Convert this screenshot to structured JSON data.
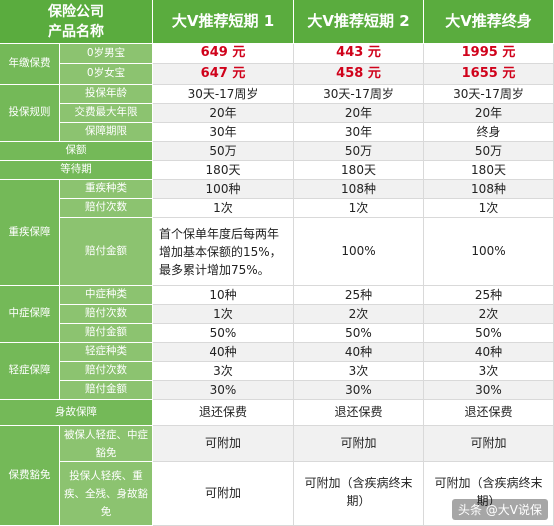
{
  "header": {
    "line1": "保险公司",
    "line2": "产品名称",
    "columns": [
      "大V推荐短期 1",
      "大V推荐短期 2",
      "大V推荐终身"
    ]
  },
  "categories": {
    "premium": "年缴保费",
    "rules": "投保规则",
    "coverage": "保额",
    "waiting": "等待期",
    "critical": "重疾保障",
    "middle": "中症保障",
    "mild": "轻症保障",
    "death": "身故保障",
    "waiver": "保费豁免"
  },
  "subs": {
    "male": "0岁男宝",
    "female": "0岁女宝",
    "age": "投保年龄",
    "pay_years": "交费最大年限",
    "term": "保障期限",
    "ci_kinds": "重疾种类",
    "ci_times": "赔付次数",
    "ci_amount": "赔付金额",
    "mid_kinds": "中症种类",
    "mid_times": "赔付次数",
    "mid_amount": "赔付金额",
    "mild_kinds": "轻症种类",
    "mild_times": "赔付次数",
    "mild_amount": "赔付金额",
    "waiver_insured": "被保人轻症、中症豁免",
    "waiver_holder": "投保人轻疾、重疾、全残、身故豁免"
  },
  "values": {
    "male": [
      "649 元",
      "443 元",
      "1995 元"
    ],
    "female": [
      "647 元",
      "458 元",
      "1655 元"
    ],
    "age": [
      "30天-17周岁",
      "30天-17周岁",
      "30天-17周岁"
    ],
    "pay_years": [
      "20年",
      "20年",
      "20年"
    ],
    "term": [
      "30年",
      "30年",
      "终身"
    ],
    "coverage": [
      "50万",
      "50万",
      "50万"
    ],
    "waiting": [
      "180天",
      "180天",
      "180天"
    ],
    "ci_kinds": [
      "100种",
      "108种",
      "108种"
    ],
    "ci_times": [
      "1次",
      "1次",
      "1次"
    ],
    "ci_amount": [
      "首个保单年度后每两年增加基本保额的15%，最多累计增加75%。",
      "100%",
      "100%"
    ],
    "mid_kinds": [
      "10种",
      "25种",
      "25种"
    ],
    "mid_times": [
      "1次",
      "2次",
      "2次"
    ],
    "mid_amount": [
      "50%",
      "50%",
      "50%"
    ],
    "mild_kinds": [
      "40种",
      "40种",
      "40种"
    ],
    "mild_times": [
      "3次",
      "3次",
      "3次"
    ],
    "mild_amount": [
      "30%",
      "30%",
      "30%"
    ],
    "death": [
      "退还保费",
      "退还保费",
      "退还保费"
    ],
    "waiver_insured": [
      "可附加",
      "可附加",
      "可附加"
    ],
    "waiver_holder": [
      "可附加",
      "可附加（含疾病终末期）",
      "可附加（含疾病终末期）"
    ]
  },
  "watermark": "头条 @大V说保",
  "colors": {
    "header_green": "#5aac3e",
    "category_green": "#74b958",
    "sub_green": "#8cc370",
    "price_red": "#d0021b"
  }
}
